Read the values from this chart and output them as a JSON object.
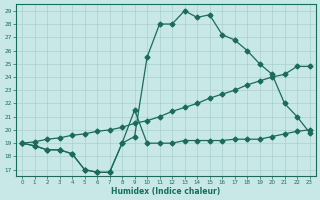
{
  "xlabel": "Humidex (Indice chaleur)",
  "bg_color": "#c8e8e8",
  "line_color": "#1a6b5a",
  "grid_color": "#aacfcf",
  "xlim": [
    -0.5,
    23.5
  ],
  "ylim": [
    16.5,
    29.5
  ],
  "xticks": [
    0,
    1,
    2,
    3,
    4,
    5,
    6,
    7,
    8,
    9,
    10,
    11,
    12,
    13,
    14,
    15,
    16,
    17,
    18,
    19,
    20,
    21,
    22,
    23
  ],
  "yticks": [
    17,
    18,
    19,
    20,
    21,
    22,
    23,
    24,
    25,
    26,
    27,
    28,
    29
  ],
  "line_peaked_x": [
    0,
    1,
    2,
    3,
    4,
    5,
    6,
    7,
    8,
    9,
    10,
    11,
    12,
    13,
    14,
    15,
    16,
    17,
    18,
    19,
    20,
    21,
    22,
    23
  ],
  "line_peaked_y": [
    19.0,
    18.8,
    18.5,
    18.5,
    18.2,
    17.0,
    16.8,
    16.8,
    19.0,
    19.5,
    25.5,
    28.0,
    28.0,
    29.0,
    28.5,
    28.7,
    27.2,
    26.8,
    26.0,
    25.0,
    24.2,
    22.0,
    21.0,
    19.8
  ],
  "line_middle_x": [
    0,
    1,
    2,
    3,
    4,
    5,
    6,
    7,
    8,
    9,
    10,
    11,
    12,
    13,
    14,
    15,
    16,
    17,
    18,
    19,
    20,
    21,
    22,
    23
  ],
  "line_middle_y": [
    19.0,
    19.1,
    19.3,
    19.4,
    19.6,
    19.7,
    19.9,
    20.0,
    20.2,
    20.5,
    20.7,
    21.0,
    21.4,
    21.7,
    22.0,
    22.4,
    22.7,
    23.0,
    23.4,
    23.7,
    24.0,
    24.2,
    24.8,
    24.8
  ],
  "line_flat_x": [
    0,
    1,
    2,
    3,
    4,
    5,
    6,
    7,
    8,
    9,
    10,
    11,
    12,
    13,
    14,
    15,
    16,
    17,
    18,
    19,
    20,
    21,
    22,
    23
  ],
  "line_flat_y": [
    19.0,
    18.8,
    18.5,
    18.5,
    18.2,
    17.0,
    16.8,
    16.8,
    19.0,
    21.5,
    19.0,
    19.0,
    19.0,
    19.2,
    19.2,
    19.2,
    19.2,
    19.3,
    19.3,
    19.3,
    19.5,
    19.7,
    19.9,
    20.0
  ]
}
